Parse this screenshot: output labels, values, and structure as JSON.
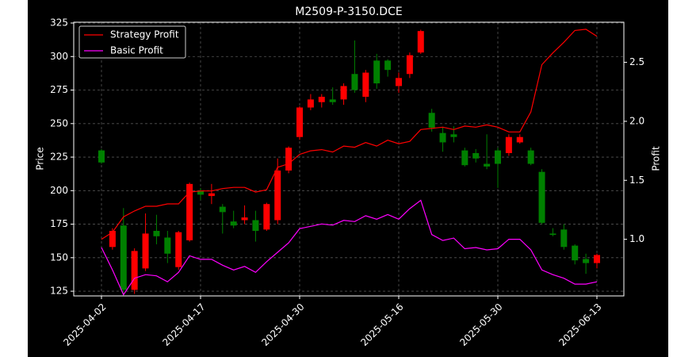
{
  "chart_data": {
    "type": "candlestick",
    "title": "M2509-P-3150.DCE",
    "ylabel": "Price",
    "y2label": "Profit",
    "categories": [
      "2025-04-02",
      null,
      null,
      null,
      null,
      null,
      null,
      null,
      null,
      "2025-04-17",
      null,
      null,
      null,
      null,
      null,
      null,
      null,
      null,
      "2025-04-30",
      null,
      null,
      null,
      null,
      null,
      null,
      null,
      null,
      "2025-05-16",
      null,
      null,
      null,
      null,
      null,
      null,
      null,
      null,
      "2025-05-30",
      null,
      null,
      null,
      null,
      null,
      null,
      null,
      null,
      "2025-06-13"
    ],
    "open": [
      230,
      158,
      174,
      126,
      142,
      170,
      165,
      143,
      163,
      200,
      196,
      188,
      177,
      178,
      178,
      171,
      178,
      215,
      240,
      262,
      266,
      268,
      268,
      287,
      270,
      297,
      297,
      278,
      287,
      303,
      258,
      243,
      242,
      230,
      228,
      220,
      230,
      228,
      236,
      230,
      214,
      168,
      171,
      159,
      149,
      146
    ],
    "high": [
      231,
      172,
      187,
      157,
      183,
      182,
      170,
      170,
      206,
      202,
      205,
      190,
      185,
      189,
      185,
      191,
      224,
      233,
      263,
      272,
      272,
      277,
      280,
      312,
      290,
      302,
      298,
      288,
      303,
      320,
      261,
      247,
      248,
      232,
      231,
      242,
      232,
      242,
      242,
      232,
      216,
      172,
      175,
      160,
      153,
      153
    ],
    "low": [
      220,
      156,
      123,
      123,
      140,
      160,
      146,
      141,
      162,
      193,
      190,
      168,
      172,
      175,
      162,
      170,
      175,
      213,
      238,
      260,
      262,
      264,
      264,
      273,
      266,
      276,
      285,
      273,
      284,
      302,
      244,
      229,
      236,
      218,
      221,
      216,
      202,
      226,
      235,
      219,
      175,
      166,
      156,
      145,
      138,
      142
    ],
    "close": [
      221,
      170,
      126,
      155,
      168,
      166,
      153,
      169,
      205,
      197,
      198,
      184,
      174,
      180,
      170,
      190,
      215,
      232,
      262,
      268,
      270,
      266,
      278,
      275,
      288,
      280,
      290,
      284,
      301,
      319,
      247,
      236,
      240,
      219,
      224,
      218,
      220,
      240,
      240,
      220,
      176,
      167,
      158,
      148,
      146,
      152
    ],
    "up_color": "#ff0000",
    "down_color": "#008000",
    "series": [
      {
        "name": "Strategy Profit",
        "color": "#ff0000",
        "axis": "y2",
        "values": [
          1.0,
          1.06,
          1.19,
          1.24,
          1.28,
          1.28,
          1.3,
          1.3,
          1.4,
          1.41,
          1.41,
          1.43,
          1.44,
          1.44,
          1.4,
          1.42,
          1.61,
          1.64,
          1.72,
          1.75,
          1.76,
          1.74,
          1.79,
          1.78,
          1.82,
          1.79,
          1.84,
          1.81,
          1.83,
          1.93,
          1.94,
          1.95,
          1.93,
          1.96,
          1.95,
          1.97,
          1.95,
          1.91,
          1.91,
          2.08,
          2.48,
          2.58,
          2.67,
          2.77,
          2.78,
          2.72
        ]
      },
      {
        "name": "Basic Profit",
        "color": "#ff00ff",
        "axis": "y2",
        "values": [
          0.93,
          0.74,
          0.53,
          0.67,
          0.7,
          0.69,
          0.64,
          0.72,
          0.86,
          0.83,
          0.83,
          0.78,
          0.74,
          0.77,
          0.72,
          0.81,
          0.89,
          0.97,
          1.09,
          1.11,
          1.13,
          1.12,
          1.16,
          1.15,
          1.2,
          1.17,
          1.21,
          1.17,
          1.26,
          1.33,
          1.04,
          0.99,
          1.01,
          0.92,
          0.93,
          0.91,
          0.92,
          1.0,
          1.0,
          0.91,
          0.74,
          0.7,
          0.67,
          0.62,
          0.62,
          0.64
        ]
      }
    ],
    "ylim": [
      121.5,
      325.6
    ],
    "yticks": [
      125,
      150,
      175,
      200,
      225,
      250,
      275,
      300,
      325
    ],
    "y2lim": [
      0.52,
      2.84
    ],
    "y2ticks": [
      {
        "value": 1,
        "label": "1.0"
      },
      1.5,
      {
        "value": 2,
        "label": "2.0"
      },
      2.5
    ],
    "grid": true,
    "legend": "upper left"
  }
}
